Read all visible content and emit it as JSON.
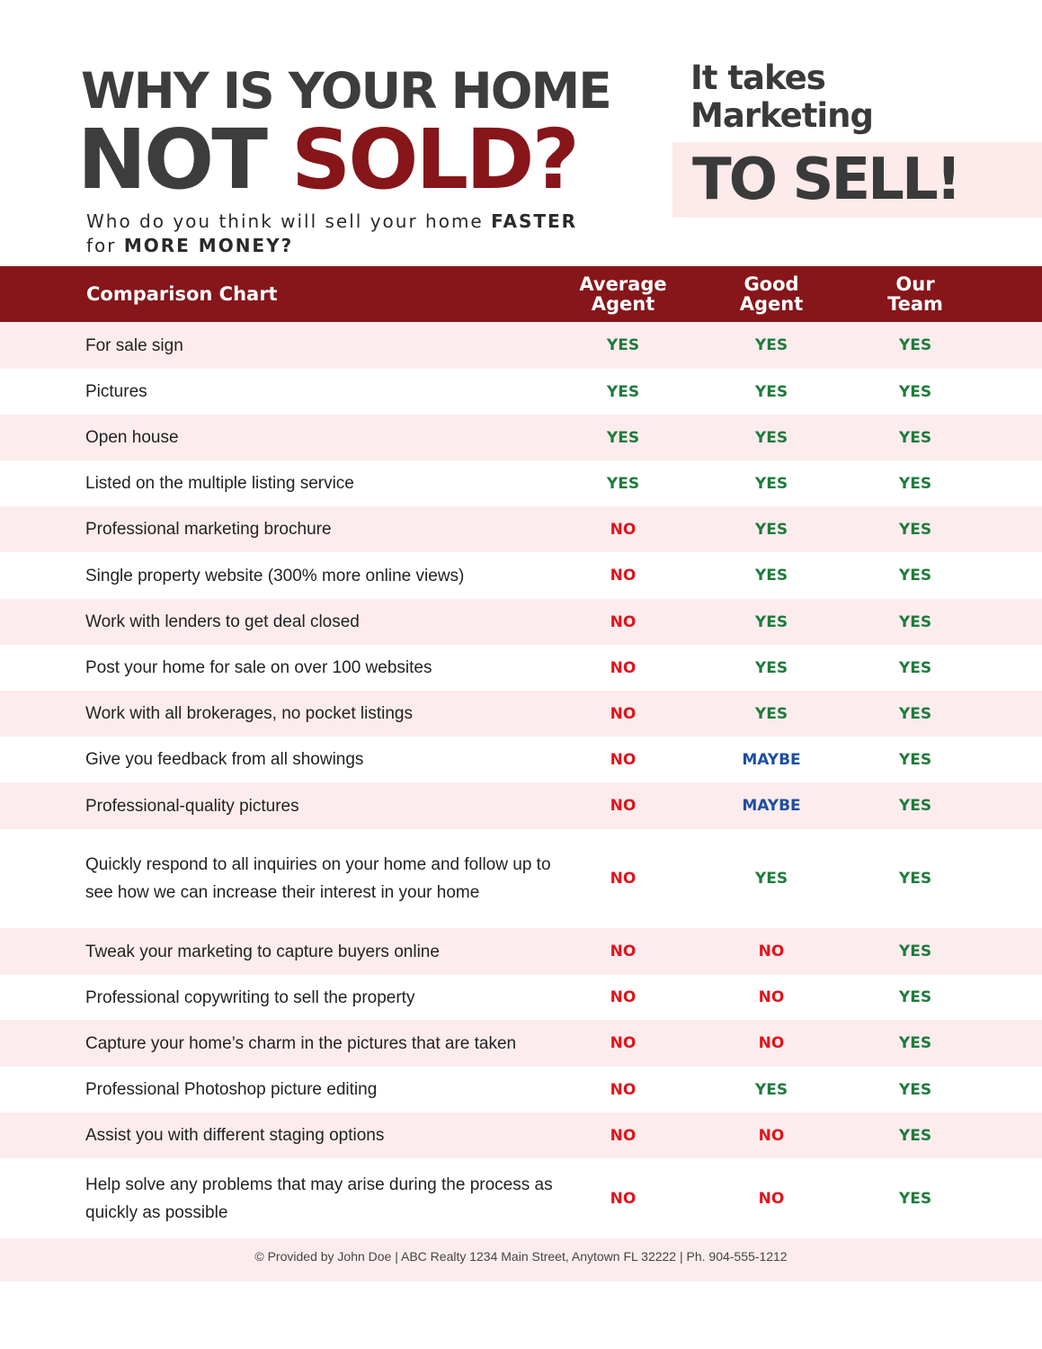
{
  "header": {
    "line1": "WHY IS YOUR HOME",
    "line2_a": "NOT",
    "line2_b": "SOLD?",
    "sub_a": "Who do you think will sell your home",
    "sub_b": "FASTER",
    "sub_c": "for",
    "sub_d": "MORE MONEY?",
    "right_line1": "It takes",
    "right_line2": "Marketing",
    "right_big": "TO SELL!"
  },
  "colors": {
    "brand_red": "#86161a",
    "yes_green": "#1e7b3c",
    "no_red": "#e0141c",
    "maybe_blue": "#1c4fa0",
    "row_pink": "#fdeced"
  },
  "table": {
    "title": "Comparison Chart",
    "columns": [
      {
        "line1": "Average",
        "line2": "Agent"
      },
      {
        "line1": "Good",
        "line2": "Agent"
      },
      {
        "line1": "Our",
        "line2": "Team"
      }
    ],
    "rows": [
      {
        "label": "For sale sign",
        "values": [
          "YES",
          "YES",
          "YES"
        ]
      },
      {
        "label": "Pictures",
        "values": [
          "YES",
          "YES",
          "YES"
        ]
      },
      {
        "label": "Open house",
        "values": [
          "YES",
          "YES",
          "YES"
        ]
      },
      {
        "label": "Listed on the multiple listing service",
        "values": [
          "YES",
          "YES",
          "YES"
        ]
      },
      {
        "label": "Professional marketing brochure",
        "values": [
          "NO",
          "YES",
          "YES"
        ]
      },
      {
        "label": "Single property website (300% more online views)",
        "values": [
          "NO",
          "YES",
          "YES"
        ]
      },
      {
        "label": "Work with lenders to get deal closed",
        "values": [
          "NO",
          "YES",
          "YES"
        ]
      },
      {
        "label": "Post your home for sale on over 100 websites",
        "values": [
          "NO",
          "YES",
          "YES"
        ]
      },
      {
        "label": "Work with all brokerages, no pocket listings",
        "values": [
          "NO",
          "YES",
          "YES"
        ]
      },
      {
        "label": "Give you feedback from all showings",
        "values": [
          "NO",
          "MAYBE",
          "YES"
        ]
      },
      {
        "label": "Professional-quality pictures",
        "values": [
          "NO",
          "MAYBE",
          "YES"
        ]
      },
      {
        "label": "Quickly respond to all inquiries on your home and follow up to see how we can increase their interest in your home",
        "values": [
          "NO",
          "YES",
          "YES"
        ]
      },
      {
        "label": "Tweak your marketing to capture buyers online",
        "values": [
          "NO",
          "NO",
          "YES"
        ]
      },
      {
        "label": "Professional copywriting to sell the property",
        "values": [
          "NO",
          "NO",
          "YES"
        ]
      },
      {
        "label": "Capture your home’s charm in the pictures that are taken",
        "values": [
          "NO",
          "NO",
          "YES"
        ]
      },
      {
        "label": "Professional Photoshop picture editing",
        "values": [
          "NO",
          "YES",
          "YES"
        ]
      },
      {
        "label": "Assist you with different staging options",
        "values": [
          "NO",
          "NO",
          "YES"
        ]
      },
      {
        "label": "Help solve any problems that may arise during the process as quickly as possible",
        "values": [
          "NO",
          "NO",
          "YES"
        ]
      }
    ]
  },
  "footer": {
    "text": "© Provided by John Doe | ABC Realty 1234 Main Street, Anytown FL 32222 | Ph. 904-555-1212"
  }
}
